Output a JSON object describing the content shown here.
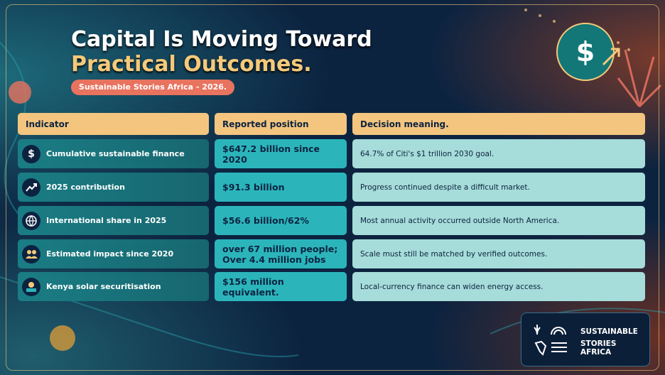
{
  "header": {
    "title_lines": [
      "Capital Is Moving Toward",
      "Practical Outcomes."
    ],
    "badge": "Sustainable Stories Africa - 2026.",
    "hero_symbol": "$"
  },
  "table": {
    "columns": [
      "Indicator",
      "Reported position",
      "Decision meaning."
    ],
    "rows": [
      {
        "indicator": "Cumulative sustainable finance",
        "position": [
          "$647.2 billion since 2020"
        ],
        "meaning": "64.7% of Citi's $1 trillion 2030 goal."
      },
      {
        "indicator": "2025 contribution",
        "position": [
          "$91.3 billion"
        ],
        "meaning": "Progress continued despite a difficult market."
      },
      {
        "indicator": "International share in 2025",
        "position": [
          "$56.6 billion/62%"
        ],
        "meaning": "Most annual activity occurred outside North America."
      },
      {
        "indicator": "Estimated impact since 2020",
        "position": [
          "over 67 million people;",
          "Over 4.4 million jobs"
        ],
        "meaning": "Scale must still be matched by verified outcomes."
      },
      {
        "indicator": "Kenya solar securitisation",
        "position": [
          "$156 million equivalent."
        ],
        "meaning": "Local-currency finance can widen energy access."
      }
    ]
  },
  "logo": {
    "lines": [
      "SUSTAINABLE",
      "STORIES AFRICA"
    ]
  }
}
